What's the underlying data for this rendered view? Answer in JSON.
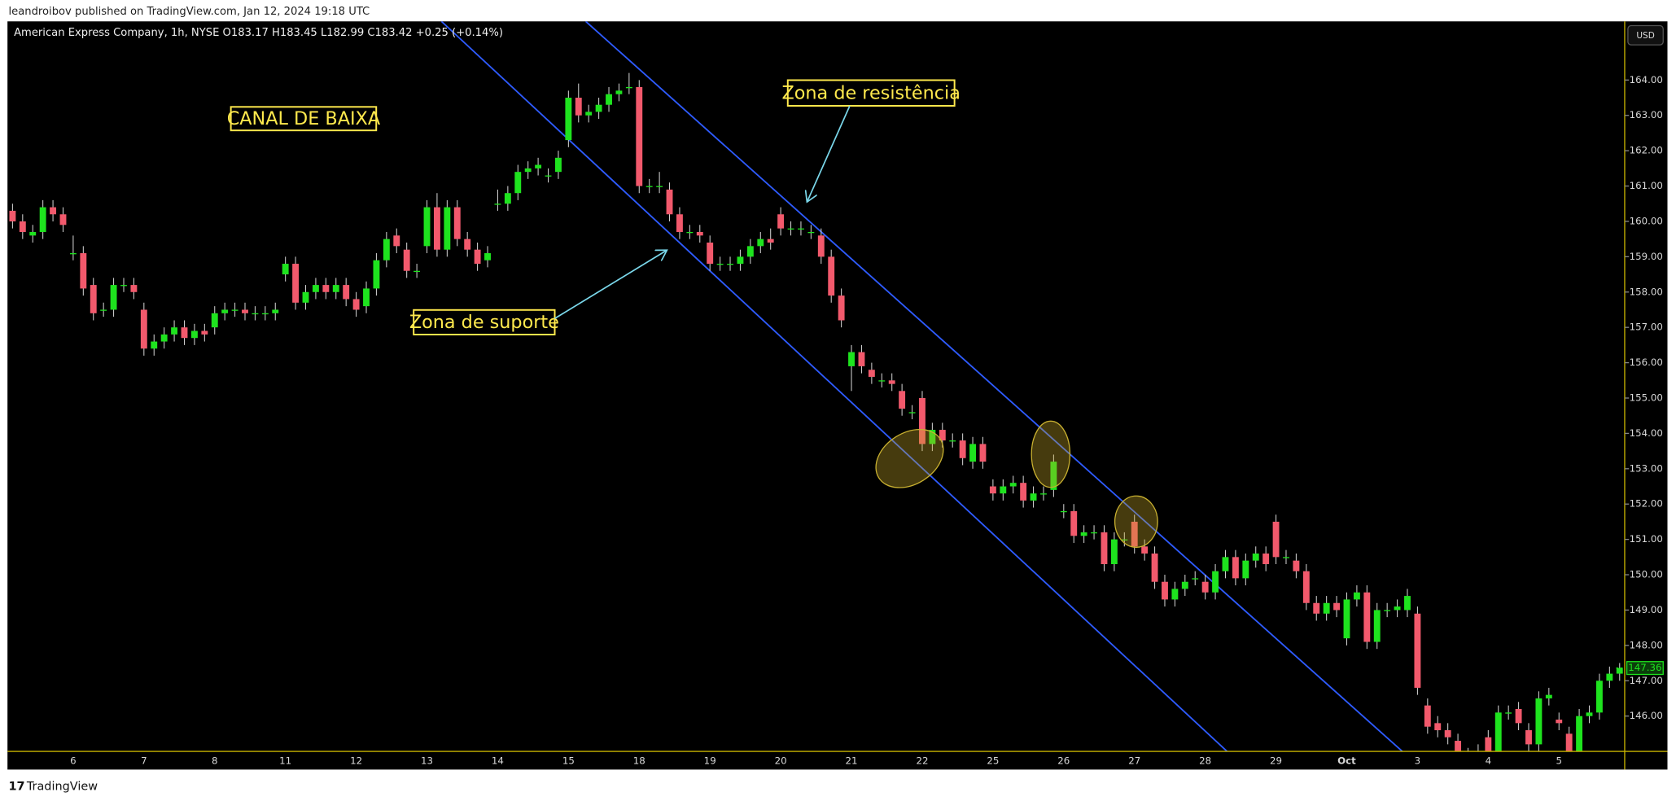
{
  "header": {
    "published": "leandroibov published on TradingView.com, Jan 12, 2024 19:18 UTC",
    "footer": "TradingView"
  },
  "chart_data": {
    "type": "candlestick",
    "title": "American Express Company, 1h, NYSE  O183.17  H183.45  L182.99  C183.42  +0.25 (+0.14%)",
    "currency": "USD",
    "annotations": [
      "CANAL DE BAIXA",
      "Zona de resistência",
      "Zona de suporte"
    ],
    "up_color": "#1ee31e",
    "down_color": "#f2596c",
    "last_price": 147.36,
    "categories": [
      null,
      null,
      null,
      null,
      null,
      null,
      "6",
      null,
      null,
      null,
      null,
      null,
      null,
      "7",
      null,
      null,
      null,
      null,
      null,
      null,
      "8",
      null,
      null,
      null,
      null,
      null,
      null,
      "11",
      null,
      null,
      null,
      null,
      null,
      null,
      "12",
      null,
      null,
      null,
      null,
      null,
      null,
      "13",
      null,
      null,
      null,
      null,
      null,
      null,
      "14",
      null,
      null,
      null,
      null,
      null,
      null,
      "15",
      null,
      null,
      null,
      null,
      null,
      null,
      "18",
      null,
      null,
      null,
      null,
      null,
      null,
      "19",
      null,
      null,
      null,
      null,
      null,
      null,
      "20",
      null,
      null,
      null,
      null,
      null,
      null,
      "21",
      null,
      null,
      null,
      null,
      null,
      null,
      "22",
      null,
      null,
      null,
      null,
      null,
      null,
      "25",
      null,
      null,
      null,
      null,
      null,
      null,
      "26",
      null,
      null,
      null,
      null,
      null,
      null,
      "27",
      null,
      null,
      null,
      null,
      null,
      null,
      "28",
      null,
      null,
      null,
      null,
      null,
      null,
      "29",
      null,
      null,
      null,
      null,
      null,
      null,
      "Oct",
      null,
      null,
      null,
      null,
      null,
      null,
      "3",
      null,
      null,
      null,
      null,
      null,
      null,
      "4",
      null,
      null,
      null,
      null,
      null,
      null,
      "5",
      null,
      null,
      null,
      null,
      null,
      null
    ],
    "open": [
      160.3,
      160.0,
      159.6,
      159.7,
      160.4,
      160.2,
      159.1,
      159.1,
      158.2,
      157.5,
      157.5,
      158.2,
      158.2,
      157.5,
      156.4,
      156.6,
      156.8,
      157.0,
      156.7,
      156.9,
      157.0,
      157.4,
      157.5,
      157.5,
      157.4,
      157.4,
      157.4,
      158.5,
      158.8,
      157.7,
      158.0,
      158.2,
      158.0,
      158.2,
      157.8,
      157.6,
      158.1,
      158.9,
      159.6,
      159.2,
      158.6,
      159.3,
      160.4,
      159.2,
      160.4,
      159.5,
      159.2,
      158.9,
      160.5,
      160.5,
      160.8,
      161.4,
      161.5,
      161.3,
      161.4,
      162.3,
      163.5,
      163.0,
      163.1,
      163.3,
      163.6,
      163.8,
      163.8,
      161.0,
      161.0,
      160.9,
      160.2,
      159.7,
      159.7,
      159.4,
      158.8,
      158.8,
      158.8,
      159.0,
      159.3,
      159.5,
      160.2,
      159.8,
      159.8,
      159.7,
      159.6,
      159.0,
      157.9,
      155.9,
      156.3,
      155.8,
      155.5,
      155.5,
      155.2,
      154.6,
      155.0,
      153.7,
      154.1,
      153.8,
      153.8,
      153.2,
      153.7,
      152.5,
      152.3,
      152.5,
      152.6,
      152.1,
      152.3,
      152.4,
      151.8,
      151.8,
      151.1,
      151.2,
      151.2,
      150.3,
      151.0,
      151.5,
      150.8,
      150.6,
      149.8,
      149.3,
      149.6,
      149.9,
      149.8,
      149.5,
      150.1,
      150.5,
      149.9,
      150.4,
      150.6,
      151.5,
      150.5,
      150.4,
      150.1,
      149.2,
      148.9,
      149.2,
      148.2,
      149.3,
      149.5,
      148.1,
      149.0,
      149.0,
      149.0,
      148.9,
      146.3,
      145.8,
      145.6,
      145.3,
      144.9,
      144.6,
      145.4,
      145.0,
      146.1,
      146.2,
      145.6,
      145.2,
      146.5,
      145.9,
      145.5,
      145.0,
      146.0,
      146.1,
      147.0,
      147.2
    ],
    "high": [
      160.5,
      160.2,
      159.9,
      160.6,
      160.6,
      160.4,
      159.6,
      159.3,
      158.4,
      157.7,
      158.4,
      158.4,
      158.4,
      157.7,
      156.8,
      157.0,
      157.2,
      157.2,
      157.1,
      157.1,
      157.6,
      157.7,
      157.7,
      157.7,
      157.6,
      157.6,
      157.7,
      159.0,
      159.0,
      158.2,
      158.4,
      158.4,
      158.4,
      158.4,
      158.0,
      158.3,
      159.1,
      159.7,
      159.8,
      159.4,
      158.8,
      160.6,
      160.8,
      160.6,
      160.6,
      159.7,
      159.4,
      159.3,
      160.9,
      161.0,
      161.6,
      161.7,
      161.8,
      161.5,
      162.0,
      163.7,
      163.9,
      163.3,
      163.5,
      163.8,
      163.9,
      164.2,
      164.0,
      161.2,
      161.4,
      161.1,
      160.4,
      159.9,
      159.9,
      159.6,
      159.0,
      159.0,
      159.2,
      159.5,
      159.7,
      159.8,
      160.4,
      160.0,
      160.0,
      159.9,
      159.8,
      159.2,
      158.1,
      156.5,
      156.5,
      156.0,
      155.7,
      155.7,
      155.4,
      154.8,
      155.2,
      154.3,
      154.3,
      154.0,
      154.0,
      153.9,
      153.9,
      152.7,
      152.7,
      152.8,
      152.8,
      152.5,
      152.5,
      153.4,
      152.0,
      152.0,
      151.4,
      151.4,
      151.4,
      151.2,
      151.2,
      151.7,
      151.0,
      150.8,
      150.0,
      149.8,
      150.0,
      150.1,
      150.0,
      150.3,
      150.7,
      150.7,
      150.6,
      150.8,
      150.8,
      151.7,
      150.7,
      150.6,
      150.3,
      149.4,
      149.4,
      149.4,
      149.5,
      149.7,
      149.7,
      149.2,
      149.2,
      149.3,
      149.6,
      149.1,
      146.5,
      146.0,
      145.8,
      145.5,
      145.1,
      145.2,
      145.6,
      146.3,
      146.3,
      146.4,
      145.8,
      146.7,
      146.8,
      146.1,
      145.7,
      146.2,
      146.3,
      147.2,
      147.4,
      147.5
    ],
    "low": [
      159.8,
      159.5,
      159.4,
      159.5,
      160.0,
      159.7,
      158.9,
      157.9,
      157.2,
      157.3,
      157.3,
      158.0,
      157.8,
      156.2,
      156.2,
      156.4,
      156.6,
      156.5,
      156.5,
      156.6,
      156.8,
      157.2,
      157.3,
      157.2,
      157.2,
      157.2,
      157.2,
      158.3,
      157.5,
      157.5,
      157.8,
      157.8,
      157.8,
      157.6,
      157.3,
      157.4,
      157.9,
      158.7,
      159.1,
      158.4,
      158.4,
      159.1,
      159.0,
      159.0,
      159.3,
      159.0,
      158.6,
      158.7,
      160.3,
      160.3,
      160.6,
      161.2,
      161.3,
      161.1,
      161.2,
      162.1,
      162.8,
      162.8,
      162.9,
      163.1,
      163.4,
      163.6,
      160.8,
      160.8,
      160.8,
      160.0,
      159.5,
      159.5,
      159.4,
      158.6,
      158.6,
      158.6,
      158.6,
      158.8,
      159.1,
      159.2,
      159.6,
      159.6,
      159.6,
      159.5,
      158.8,
      157.7,
      157.0,
      155.2,
      155.7,
      155.4,
      155.3,
      155.2,
      154.5,
      154.4,
      153.5,
      153.5,
      153.6,
      153.6,
      153.1,
      153.0,
      153.0,
      152.1,
      152.1,
      152.3,
      151.9,
      151.9,
      152.1,
      152.2,
      151.6,
      150.9,
      150.9,
      151.0,
      150.1,
      150.1,
      150.8,
      150.6,
      150.4,
      149.6,
      149.1,
      149.1,
      149.4,
      149.7,
      149.3,
      149.3,
      149.9,
      149.7,
      149.7,
      150.2,
      150.1,
      150.3,
      150.3,
      149.9,
      149.0,
      148.7,
      148.7,
      148.8,
      148.0,
      149.1,
      147.9,
      147.9,
      148.8,
      148.8,
      148.8,
      146.6,
      145.5,
      145.4,
      145.2,
      144.6,
      144.4,
      144.4,
      144.7,
      144.8,
      145.9,
      145.6,
      145.0,
      145.0,
      146.3,
      145.6,
      144.8,
      144.8,
      145.8,
      145.9,
      146.8,
      147.0
    ],
    "close": [
      160.0,
      159.7,
      159.7,
      160.4,
      160.2,
      159.9,
      159.1,
      158.1,
      157.4,
      157.5,
      158.2,
      158.2,
      158.0,
      156.4,
      156.6,
      156.8,
      157.0,
      156.7,
      156.9,
      156.8,
      157.4,
      157.5,
      157.5,
      157.4,
      157.4,
      157.4,
      157.5,
      158.8,
      157.7,
      158.0,
      158.2,
      158.0,
      158.2,
      157.8,
      157.5,
      158.1,
      158.9,
      159.5,
      159.3,
      158.6,
      158.6,
      160.4,
      159.2,
      160.4,
      159.5,
      159.2,
      158.8,
      159.1,
      160.5,
      160.8,
      161.4,
      161.5,
      161.6,
      161.3,
      161.8,
      163.5,
      163.0,
      163.1,
      163.3,
      163.6,
      163.7,
      163.8,
      161.0,
      161.0,
      161.0,
      160.2,
      159.7,
      159.7,
      159.6,
      158.8,
      158.8,
      158.8,
      159.0,
      159.3,
      159.5,
      159.4,
      159.8,
      159.8,
      159.8,
      159.7,
      159.0,
      157.9,
      157.2,
      156.3,
      155.9,
      155.6,
      155.5,
      155.4,
      154.7,
      154.6,
      153.7,
      154.1,
      153.8,
      153.8,
      153.3,
      153.7,
      153.2,
      152.3,
      152.5,
      152.6,
      152.1,
      152.3,
      152.3,
      153.2,
      151.8,
      151.1,
      151.2,
      151.2,
      150.3,
      151.0,
      151.0,
      150.8,
      150.6,
      149.8,
      149.3,
      149.6,
      149.8,
      149.9,
      149.5,
      150.1,
      150.5,
      149.9,
      150.4,
      150.6,
      150.3,
      150.5,
      150.5,
      150.1,
      149.2,
      148.9,
      149.2,
      149.0,
      149.3,
      149.5,
      148.1,
      149.0,
      149.0,
      149.1,
      149.4,
      146.8,
      145.7,
      145.6,
      145.4,
      144.8,
      144.6,
      145.0,
      144.9,
      146.1,
      146.1,
      145.8,
      145.2,
      146.5,
      146.6,
      145.8,
      145.0,
      146.0,
      146.1,
      147.0,
      147.2,
      147.36
    ],
    "ylim": [
      145.0,
      165.66
    ],
    "yticks": [
      {
        "value": 146,
        "label": "146.00"
      },
      {
        "value": 147,
        "label": "147.00"
      },
      {
        "value": 148,
        "label": "148.00"
      },
      {
        "value": 149,
        "label": "149.00"
      },
      {
        "value": 150,
        "label": "150.00"
      },
      {
        "value": 151,
        "label": "151.00"
      },
      {
        "value": 152,
        "label": "152.00"
      },
      {
        "value": 153,
        "label": "153.00"
      },
      {
        "value": 154,
        "label": "154.00"
      },
      {
        "value": 155,
        "label": "155.00"
      },
      {
        "value": 156,
        "label": "156.00"
      },
      {
        "value": 157,
        "label": "157.00"
      },
      {
        "value": 158,
        "label": "158.00"
      },
      {
        "value": 159,
        "label": "159.00"
      },
      {
        "value": 160,
        "label": "160.00"
      },
      {
        "value": 161,
        "label": "161.00"
      },
      {
        "value": 162,
        "label": "162.00"
      },
      {
        "value": 163,
        "label": "163.00"
      },
      {
        "value": 164,
        "label": "164.00"
      }
    ]
  }
}
